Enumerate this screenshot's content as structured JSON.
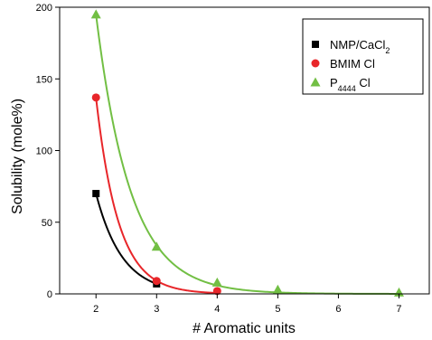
{
  "chart_data": {
    "type": "scatter",
    "xlabel": "# Aromatic units",
    "ylabel": "Solubility (mole%)",
    "xlim": [
      1.4,
      7.5
    ],
    "ylim": [
      0,
      200
    ],
    "x_ticks": [
      2,
      3,
      4,
      5,
      6,
      7
    ],
    "y_ticks": [
      0,
      50,
      100,
      150,
      200
    ],
    "legend_position": "top-right",
    "series": [
      {
        "name_main": "NMP/CaCl",
        "name_sub": "2",
        "name_after": "",
        "marker": "square",
        "color": "#000000",
        "x": [
          2,
          3
        ],
        "y": [
          70,
          7
        ]
      },
      {
        "name_main": "BMIM Cl",
        "name_sub": "",
        "name_after": "",
        "marker": "circle",
        "color": "#e8262a",
        "x": [
          2,
          3,
          4
        ],
        "y": [
          137,
          9,
          2
        ]
      },
      {
        "name_main": "P",
        "name_sub": "4444",
        "name_after": " Cl",
        "marker": "triangle",
        "color": "#72bf44",
        "x": [
          2,
          3,
          4,
          5,
          7
        ],
        "y": [
          195,
          33,
          8,
          3,
          1
        ]
      }
    ]
  }
}
